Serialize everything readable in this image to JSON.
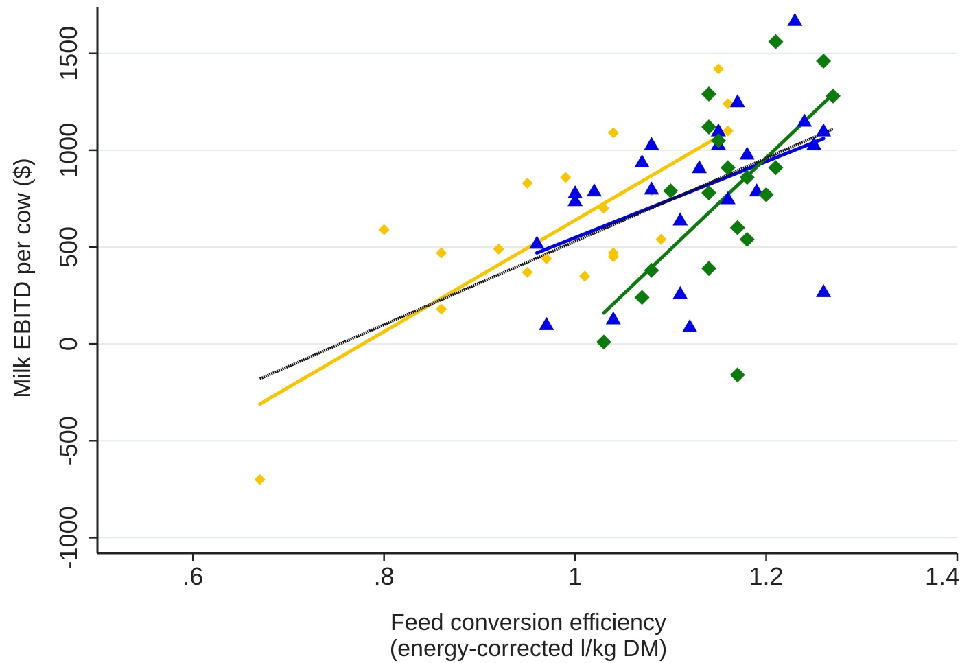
{
  "chart_data": {
    "type": "scatter",
    "xlabel_line1": "Feed conversion efficiency",
    "xlabel_line2": "(energy-corrected l/kg DM)",
    "ylabel": "Milk EBITD per cow ($)",
    "xlim": [
      0.5,
      1.4
    ],
    "ylim": [
      -1080,
      1740
    ],
    "xticks": [
      {
        "value": 0.6,
        "label": ".6"
      },
      {
        "value": 0.8,
        "label": ".8"
      },
      {
        "value": 1.0,
        "label": "1"
      },
      {
        "value": 1.2,
        "label": "1.2"
      },
      {
        "value": 1.4,
        "label": "1.4"
      }
    ],
    "yticks": [
      {
        "value": -1000,
        "label": "-1000"
      },
      {
        "value": -500,
        "label": "-500"
      },
      {
        "value": 0,
        "label": "0"
      },
      {
        "value": 500,
        "label": "500"
      },
      {
        "value": 1000,
        "label": "1000"
      },
      {
        "value": 1500,
        "label": "1500"
      }
    ],
    "grid": "horizontal",
    "legend": "none",
    "series": [
      {
        "marker": "diamond-small",
        "color": "#f7c600",
        "points": [
          [
            0.67,
            -700
          ],
          [
            0.8,
            590
          ],
          [
            0.86,
            470
          ],
          [
            0.86,
            180
          ],
          [
            0.92,
            490
          ],
          [
            0.95,
            830
          ],
          [
            0.95,
            370
          ],
          [
            0.97,
            440
          ],
          [
            0.99,
            860
          ],
          [
            1.01,
            350
          ],
          [
            1.03,
            700
          ],
          [
            1.04,
            1090
          ],
          [
            1.04,
            470
          ],
          [
            1.04,
            450
          ],
          [
            1.08,
            790
          ],
          [
            1.09,
            540
          ],
          [
            1.15,
            1420
          ],
          [
            1.16,
            1240
          ],
          [
            1.16,
            1100
          ]
        ],
        "fit": [
          [
            0.67,
            -310
          ],
          [
            1.15,
            1070
          ]
        ]
      },
      {
        "marker": "triangle",
        "color": "#0000e6",
        "points": [
          [
            0.96,
            520
          ],
          [
            0.97,
            100
          ],
          [
            1.0,
            780
          ],
          [
            1.0,
            740
          ],
          [
            1.02,
            790
          ],
          [
            1.04,
            130
          ],
          [
            1.07,
            940
          ],
          [
            1.08,
            1030
          ],
          [
            1.08,
            800
          ],
          [
            1.11,
            640
          ],
          [
            1.11,
            260
          ],
          [
            1.12,
            90
          ],
          [
            1.13,
            910
          ],
          [
            1.15,
            1100
          ],
          [
            1.15,
            1030
          ],
          [
            1.16,
            750
          ],
          [
            1.17,
            1250
          ],
          [
            1.18,
            980
          ],
          [
            1.19,
            790
          ],
          [
            1.23,
            1670
          ],
          [
            1.24,
            1150
          ],
          [
            1.25,
            1030
          ],
          [
            1.26,
            1100
          ],
          [
            1.26,
            270
          ]
        ],
        "fit": [
          [
            0.96,
            470
          ],
          [
            1.26,
            1060
          ]
        ]
      },
      {
        "marker": "diamond",
        "color": "#0d7a0d",
        "points": [
          [
            1.03,
            10
          ],
          [
            1.07,
            240
          ],
          [
            1.08,
            380
          ],
          [
            1.1,
            790
          ],
          [
            1.14,
            1290
          ],
          [
            1.14,
            1120
          ],
          [
            1.14,
            780
          ],
          [
            1.14,
            390
          ],
          [
            1.15,
            1050
          ],
          [
            1.16,
            910
          ],
          [
            1.17,
            600
          ],
          [
            1.17,
            -160
          ],
          [
            1.18,
            860
          ],
          [
            1.18,
            540
          ],
          [
            1.2,
            770
          ],
          [
            1.21,
            1560
          ],
          [
            1.21,
            910
          ],
          [
            1.26,
            1460
          ],
          [
            1.27,
            1280
          ]
        ],
        "fit": [
          [
            1.03,
            160
          ],
          [
            1.27,
            1290
          ]
        ]
      }
    ],
    "overall_fit": {
      "color": "#111111",
      "line": [
        [
          0.67,
          -180
        ],
        [
          1.27,
          1110
        ]
      ]
    }
  }
}
